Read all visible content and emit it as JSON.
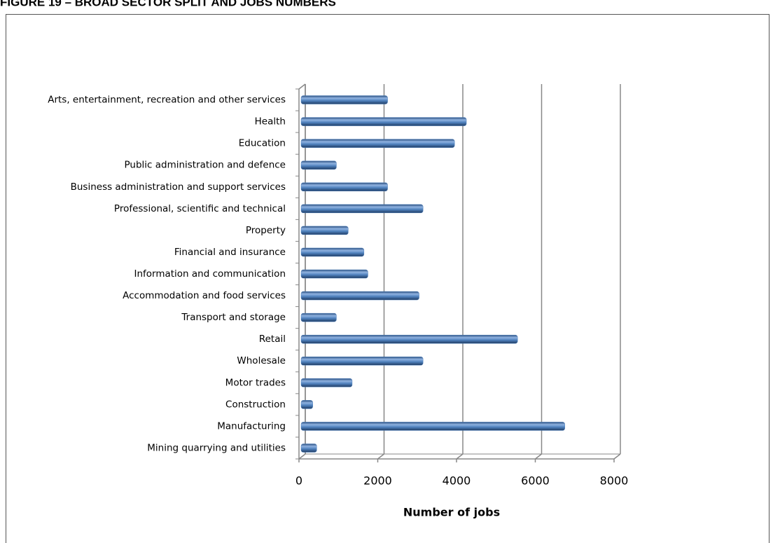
{
  "chart_data": {
    "type": "bar",
    "orientation": "horizontal",
    "title": "FIGURE 19 – BROAD SECTOR SPLIT AND JOBS NUMBERS",
    "x_label": "Number of jobs",
    "categories": [
      "Mining quarrying and utilities",
      "Manufacturing",
      "Construction",
      "Motor trades",
      "Wholesale",
      "Retail",
      "Transport and storage",
      "Accommodation and food services",
      "Information and communication",
      "Financial and insurance",
      "Property",
      "Professional, scientific and technical",
      "Business administration and support services",
      "Public administration and defence",
      "Education",
      "Health",
      "Arts, entertainment, recreation and other services"
    ],
    "values": [
      450,
      6750,
      350,
      1350,
      3150,
      5550,
      950,
      3050,
      1750,
      1650,
      1250,
      3150,
      2250,
      950,
      3950,
      4250,
      2250
    ],
    "color": "#4f81bd",
    "xlim": [
      0,
      8000
    ],
    "xticks": [
      0,
      2000,
      4000,
      6000,
      8000
    ],
    "grid": true
  }
}
